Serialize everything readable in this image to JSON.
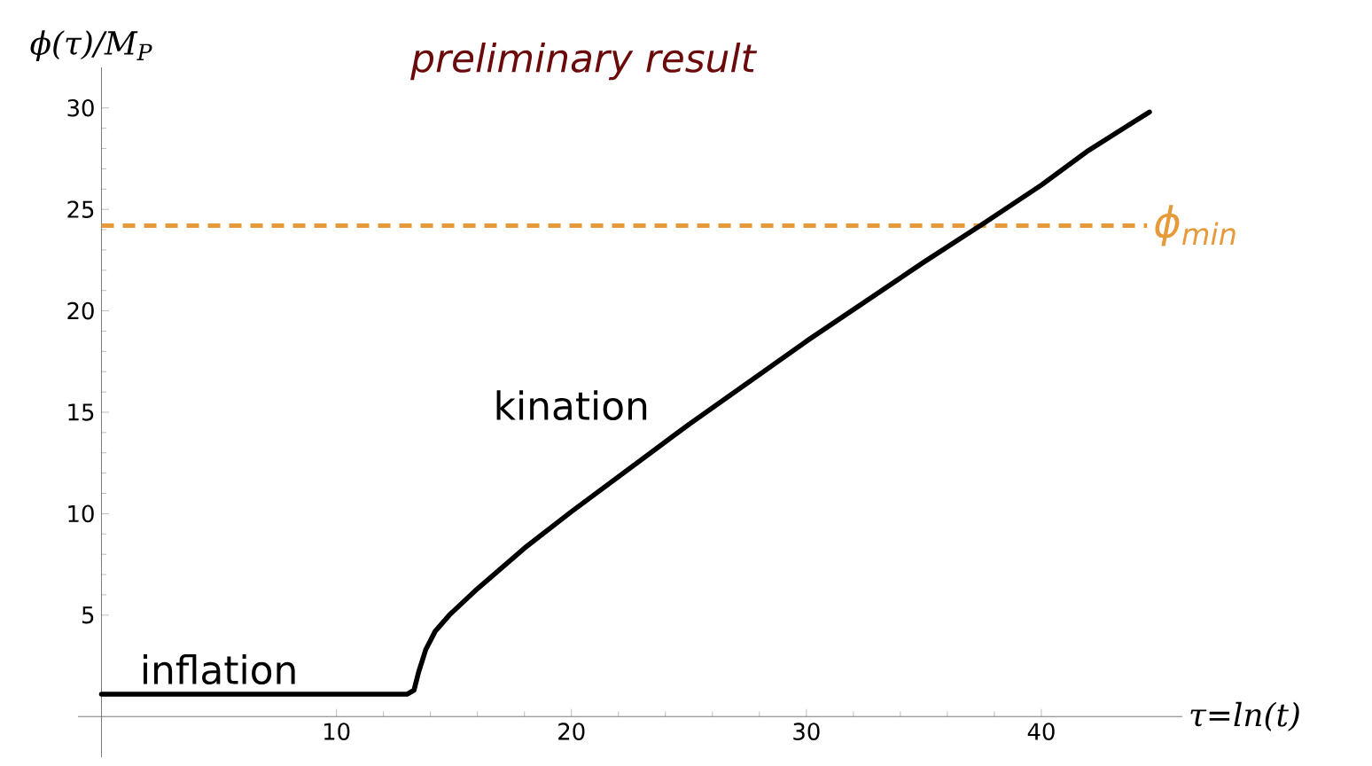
{
  "chart_data": {
    "type": "line",
    "title": "preliminary result",
    "xlabel": "τ=ln(t)",
    "ylabel": "ϕ(τ)/M$_{P}$",
    "x": [
      0,
      13.0,
      13.3,
      13.5,
      13.8,
      14.2,
      14.8,
      16,
      18,
      20,
      25,
      30,
      35,
      37.4,
      40,
      42,
      44.6
    ],
    "series": [
      {
        "color": "#000000",
        "values": [
          1.1,
          1.1,
          1.3,
          2.2,
          3.3,
          4.2,
          5.0,
          6.3,
          8.3,
          10.1,
          14.4,
          18.5,
          22.4,
          24.2,
          26.2,
          27.9,
          29.8
        ]
      }
    ],
    "xlim": [
      -1,
      46
    ],
    "ylim": [
      -2,
      32
    ],
    "xticks": [
      10,
      20,
      30,
      40
    ],
    "yticks": [
      5,
      10,
      15,
      20,
      25,
      30
    ],
    "ref_lines": [
      {
        "axis": "y",
        "value": 24.2,
        "label": "ϕ$_{min}$",
        "color": "#e69a3a",
        "line_style": "dashed"
      }
    ],
    "annotations": [
      {
        "text": "inflation",
        "x": 5,
        "y": 1.1
      },
      {
        "text": "kination",
        "x": 20,
        "y": 10.1
      }
    ],
    "grid": false,
    "marker": "none",
    "line_style": "solid"
  }
}
